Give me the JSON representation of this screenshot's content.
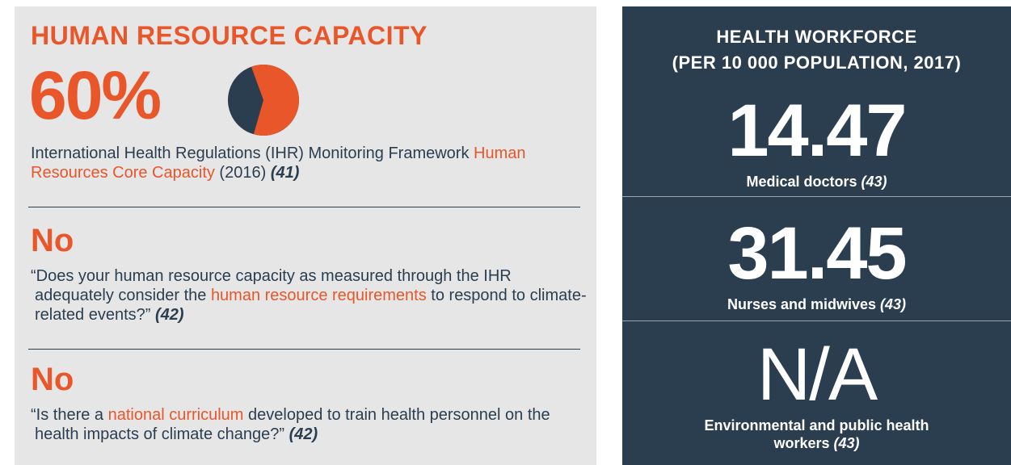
{
  "left": {
    "title": "HUMAN RESOURCE CAPACITY",
    "percent": 60,
    "percent_label": "60%",
    "description": [
      "International Health Regulations (IHR) Monitoring Framework ",
      "Human Resources Core Capacity",
      " (2016) ",
      "(41)"
    ],
    "questions": [
      {
        "answer": "No",
        "text": [
          "“Does your human resource capacity as measured through the IHR adequately consider the ",
          "human resource requirements",
          " to respond to climate-related events?” ",
          "(42)"
        ]
      },
      {
        "answer": "No",
        "text": [
          "“Is there a ",
          "national curriculum",
          " developed to train health personnel on the health impacts of climate change?” ",
          "(42)"
        ]
      }
    ]
  },
  "right": {
    "title": [
      "HEALTH WORKFORCE",
      "(PER 10 000 POPULATION, 2017)"
    ],
    "stats": [
      {
        "value": 14.47,
        "label": "Medical doctors ",
        "source": "(43)"
      },
      {
        "value": 31.45,
        "label": "Nurses and midwives ",
        "source": "(43)"
      },
      {
        "value": "N/A",
        "label": "Environmental and public health workers ",
        "source": "(43)"
      }
    ]
  }
}
